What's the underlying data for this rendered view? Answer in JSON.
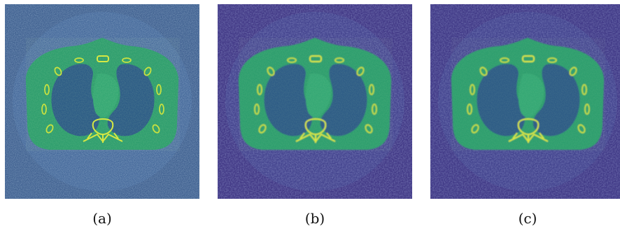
{
  "figure": {
    "panels": [
      {
        "id": "a",
        "caption": "(a)",
        "background": "#3e5f8f",
        "noise": "#567ba3"
      },
      {
        "id": "b",
        "caption": "(b)",
        "background": "#433a87",
        "noise": "#4f5399"
      },
      {
        "id": "c",
        "caption": "(c)",
        "background": "#423b88",
        "noise": "#4f5399"
      }
    ],
    "colors": {
      "body": "#2f9e6e",
      "body_bright": "#3fb872",
      "lung": "#2d5c86",
      "bone": "#a8d93a",
      "bone_bright": "#d8e83c"
    }
  }
}
